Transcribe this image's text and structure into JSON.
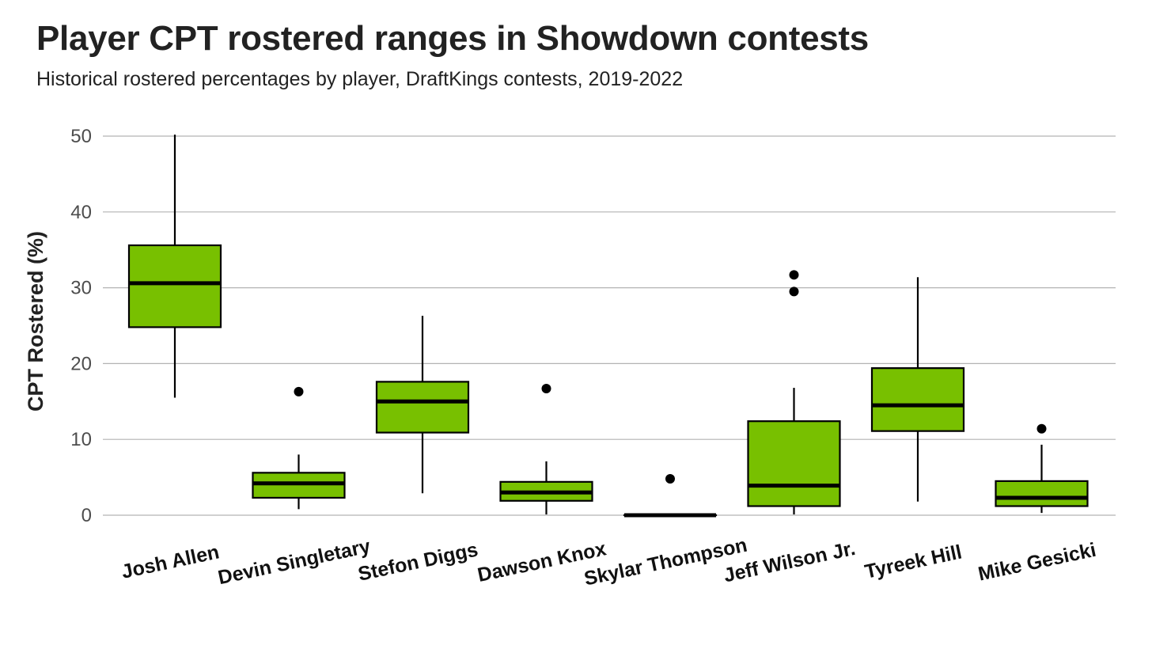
{
  "title": "Player CPT rostered ranges in Showdown contests",
  "subtitle": "Historical rostered percentages by player, DraftKings contests, 2019-2022",
  "chart_data": {
    "type": "boxplot",
    "ylabel": "CPT Rostered (%)",
    "xlabel": "",
    "ylim": [
      0,
      50
    ],
    "yticks": [
      0,
      10,
      20,
      30,
      40,
      50
    ],
    "grid": "horizontal",
    "box_color": "#78c000",
    "categories": [
      "Josh Allen",
      "Devin Singletary",
      "Stefon Diggs",
      "Dawson Knox",
      "Skylar Thompson",
      "Jeff Wilson Jr.",
      "Tyreek Hill",
      "Mike Gesicki"
    ],
    "boxes": [
      {
        "player": "Josh Allen",
        "whisker_low": 15.5,
        "q1": 24.8,
        "median": 30.6,
        "q3": 35.6,
        "whisker_high": 50.2,
        "outliers": []
      },
      {
        "player": "Devin Singletary",
        "whisker_low": 0.8,
        "q1": 2.3,
        "median": 4.2,
        "q3": 5.6,
        "whisker_high": 8.0,
        "outliers": [
          16.3
        ]
      },
      {
        "player": "Stefon Diggs",
        "whisker_low": 2.9,
        "q1": 10.9,
        "median": 15.0,
        "q3": 17.6,
        "whisker_high": 26.3,
        "outliers": []
      },
      {
        "player": "Dawson Knox",
        "whisker_low": 0.1,
        "q1": 1.9,
        "median": 3.0,
        "q3": 4.4,
        "whisker_high": 7.1,
        "outliers": [
          16.7
        ]
      },
      {
        "player": "Skylar Thompson",
        "whisker_low": 0.0,
        "q1": 0.0,
        "median": 0.0,
        "q3": 0.0,
        "whisker_high": 0.0,
        "outliers": [
          4.8
        ]
      },
      {
        "player": "Jeff Wilson Jr.",
        "whisker_low": 0.1,
        "q1": 1.2,
        "median": 3.9,
        "q3": 12.4,
        "whisker_high": 16.8,
        "outliers": [
          29.5,
          31.7
        ]
      },
      {
        "player": "Tyreek Hill",
        "whisker_low": 1.8,
        "q1": 11.1,
        "median": 14.5,
        "q3": 19.4,
        "whisker_high": 31.4,
        "outliers": []
      },
      {
        "player": "Mike Gesicki",
        "whisker_low": 0.3,
        "q1": 1.2,
        "median": 2.3,
        "q3": 4.5,
        "whisker_high": 9.3,
        "outliers": [
          11.4
        ]
      }
    ]
  }
}
